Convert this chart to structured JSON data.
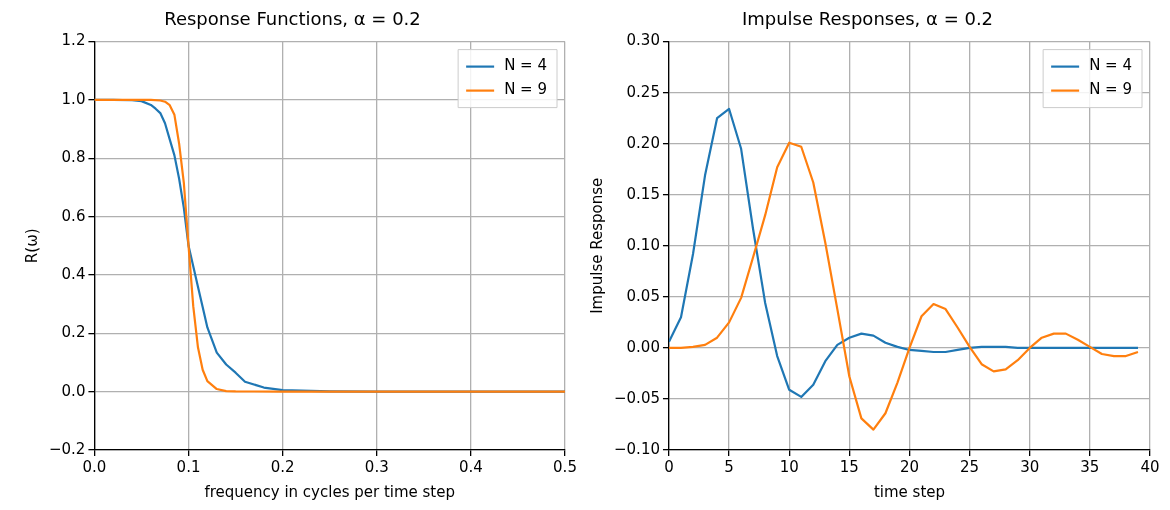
{
  "chart_data": [
    {
      "type": "line",
      "title": "Response Functions, α = 0.2",
      "xlabel": "frequency in cycles per time step",
      "ylabel": "R(ω)",
      "xlim": [
        0,
        0.5
      ],
      "ylim": [
        -0.2,
        1.2
      ],
      "xticks": [
        {
          "value": 0,
          "label": "0.0"
        },
        0.1,
        0.2,
        0.3,
        0.4,
        0.5
      ],
      "yticks": [
        {
          "value": -0.2,
          "label": "−0.2"
        },
        {
          "value": 0,
          "label": "0.0"
        },
        0.2,
        0.4,
        0.6,
        0.8,
        {
          "value": 1,
          "label": "1.0"
        },
        1.2
      ],
      "grid": true,
      "legend": "top right",
      "marker": "none",
      "line_style": "solid",
      "series": [
        {
          "name": "N = 4",
          "color": "#1f77b4",
          "x": [
            0,
            0.02,
            0.04,
            0.05,
            0.06,
            0.065,
            0.07,
            0.075,
            0.08,
            0.085,
            0.09,
            0.095,
            0.1,
            0.105,
            0.11,
            0.115,
            0.12,
            0.13,
            0.14,
            0.15,
            0.16,
            0.18,
            0.2,
            0.25,
            0.3,
            0.5
          ],
          "values": [
            1,
            1,
            0.999,
            0.996,
            0.983,
            0.97,
            0.955,
            0.92,
            0.865,
            0.81,
            0.73,
            0.63,
            0.5,
            0.43,
            0.36,
            0.29,
            0.22,
            0.134,
            0.093,
            0.065,
            0.034,
            0.014,
            0.005,
            0.001,
            0,
            0
          ]
        },
        {
          "name": "N = 9",
          "color": "#ff7f0e",
          "x": [
            0,
            0.02,
            0.04,
            0.06,
            0.07,
            0.075,
            0.08,
            0.085,
            0.09,
            0.095,
            0.1,
            0.105,
            0.11,
            0.115,
            0.12,
            0.13,
            0.14,
            0.15,
            0.2,
            0.3,
            0.5
          ],
          "values": [
            1,
            1,
            1,
            1,
            0.998,
            0.994,
            0.982,
            0.949,
            0.85,
            0.716,
            0.5,
            0.293,
            0.152,
            0.075,
            0.036,
            0.009,
            0.002,
            0.001,
            0,
            0,
            0
          ]
        }
      ]
    },
    {
      "type": "line",
      "title": "Impulse Responses, α = 0.2",
      "xlabel": "time step",
      "ylabel": "Impulse Response",
      "xlim": [
        0,
        40
      ],
      "ylim": [
        -0.1,
        0.3
      ],
      "xticks": [
        0,
        5,
        10,
        15,
        20,
        25,
        30,
        35,
        40
      ],
      "yticks": [
        {
          "value": -0.1,
          "label": "−0.10"
        },
        {
          "value": -0.05,
          "label": "−0.05"
        },
        {
          "value": 0,
          "label": "0.00"
        },
        {
          "value": 0.05,
          "label": "0.05"
        },
        {
          "value": 0.1,
          "label": "0.10"
        },
        {
          "value": 0.15,
          "label": "0.15"
        },
        {
          "value": 0.2,
          "label": "0.20"
        },
        {
          "value": 0.25,
          "label": "0.25"
        },
        {
          "value": 0.3,
          "label": "0.30"
        }
      ],
      "grid": true,
      "legend": "top right",
      "marker": "none",
      "line_style": "solid",
      "x": [
        0,
        1,
        2,
        3,
        4,
        5,
        6,
        7,
        8,
        9,
        10,
        11,
        12,
        13,
        14,
        15,
        16,
        17,
        18,
        19,
        20,
        21,
        22,
        23,
        24,
        25,
        26,
        27,
        28,
        29,
        30,
        31,
        32,
        33,
        34,
        35,
        36,
        37,
        38,
        39
      ],
      "series": [
        {
          "name": "N = 4",
          "color": "#1f77b4",
          "values": [
            0.006,
            0.03,
            0.092,
            0.169,
            0.225,
            0.234,
            0.195,
            0.116,
            0.044,
            -0.008,
            -0.041,
            -0.048,
            -0.036,
            -0.013,
            0.003,
            0.01,
            0.014,
            0.012,
            0.005,
            0.001,
            -0.002,
            -0.003,
            -0.004,
            -0.004,
            -0.002,
            0,
            0.001,
            0.001,
            0.001,
            0,
            0,
            0,
            0,
            0,
            0,
            0,
            0,
            0,
            0,
            0
          ]
        },
        {
          "name": "N = 9",
          "color": "#ff7f0e",
          "values": [
            0,
            0,
            0.001,
            0.003,
            0.01,
            0.025,
            0.049,
            0.089,
            0.13,
            0.177,
            0.201,
            0.197,
            0.162,
            0.103,
            0.038,
            -0.028,
            -0.069,
            -0.08,
            -0.064,
            -0.034,
            0,
            0.031,
            0.043,
            0.038,
            0.02,
            0.001,
            -0.016,
            -0.023,
            -0.021,
            -0.012,
            0,
            0.01,
            0.014,
            0.014,
            0.008,
            0.001,
            -0.006,
            -0.008,
            -0.008,
            -0.004
          ]
        }
      ]
    }
  ]
}
